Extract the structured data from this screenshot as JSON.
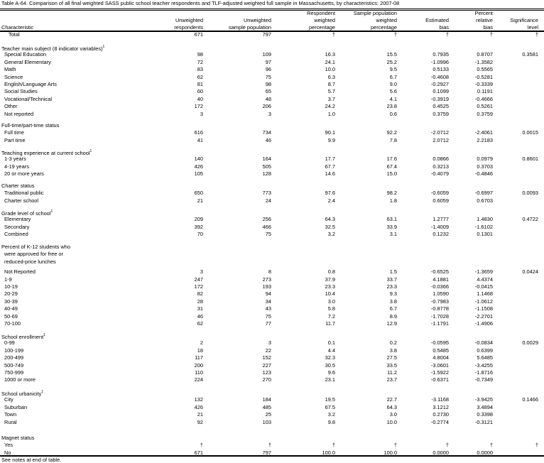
{
  "title": "Table A-64. Comparison of all final weighted SASS public school teacher respondents and TLF-adjusted weighted full sample in Massachusetts, by characteristics: 2007-08",
  "headers": {
    "characteristic": "Characteristic",
    "columns": [
      [
        "Unweighted",
        "respondents"
      ],
      [
        "Unweighted",
        "sample population"
      ],
      [
        "Respondent",
        "weighted",
        "percentage"
      ],
      [
        "Sample population",
        "weighted",
        "percentage"
      ],
      [
        "Estimated",
        "bias"
      ],
      [
        "Percent",
        "relative",
        "bias"
      ],
      [
        "Significance",
        "level"
      ]
    ]
  },
  "total": {
    "label": "Total",
    "values": [
      "671",
      "797",
      "†",
      "†",
      "†",
      "†",
      "†"
    ]
  },
  "sections": [
    {
      "title": [
        "Teacher main subject (8 indicator variables)"
      ],
      "footnote": "1",
      "rows": [
        {
          "label": "Special Education",
          "values": [
            "98",
            "109",
            "16.3",
            "15.5",
            "0.7935",
            "0.8707",
            "0.3581"
          ]
        },
        {
          "label": "General Elementary",
          "values": [
            "72",
            "97",
            "24.1",
            "25.2",
            "-1.0996",
            "-1.3582",
            ""
          ]
        },
        {
          "label": "Math",
          "values": [
            "83",
            "96",
            "10.0",
            "9.5",
            "0.5133",
            "0.5565",
            ""
          ]
        },
        {
          "label": "Science",
          "values": [
            "62",
            "75",
            "6.3",
            "6.7",
            "-0.4608",
            "-0.5281",
            ""
          ]
        },
        {
          "label": "English/Language Arts",
          "values": [
            "81",
            "98",
            "8.7",
            "9.0",
            "-0.2927",
            "-0.3339",
            ""
          ]
        },
        {
          "label": "Social Studies",
          "values": [
            "60",
            "65",
            "5.7",
            "5.6",
            "0.1099",
            "0.1191",
            ""
          ]
        },
        {
          "label": "Vocational/Technical",
          "values": [
            "40",
            "48",
            "3.7",
            "4.1",
            "-0.3919",
            "-0.4666",
            ""
          ]
        },
        {
          "label": "Other",
          "values": [
            "172",
            "206",
            "24.2",
            "23.8",
            "0.4525",
            "0.5261",
            ""
          ]
        },
        {
          "label": "Not reported",
          "values": [
            "3",
            "3",
            "1.0",
            "0.6",
            "0.3759",
            "0.3759",
            ""
          ]
        }
      ]
    },
    {
      "title": [
        "Full-time/part-time status"
      ],
      "footnote": "",
      "rows": [
        {
          "label": "Full time",
          "values": [
            "616",
            "734",
            "90.1",
            "92.2",
            "-2.0712",
            "-2.4061",
            "0.0015"
          ]
        },
        {
          "label": "Part time",
          "values": [
            "41",
            "46",
            "9.9",
            "7.8",
            "2.0712",
            "2.2183",
            ""
          ]
        }
      ]
    },
    {
      "title": [
        "Teaching experience at current school"
      ],
      "footnote": "1",
      "rows": [
        {
          "label": "1-3 years",
          "values": [
            "140",
            "164",
            "17.7",
            "17.6",
            "0.0866",
            "0.0979",
            "0.8601"
          ]
        },
        {
          "label": "4-19 years",
          "values": [
            "426",
            "505",
            "67.7",
            "67.4",
            "0.3213",
            "0.3703",
            ""
          ]
        },
        {
          "label": "20 or more years",
          "values": [
            "105",
            "128",
            "14.6",
            "15.0",
            "-0.4079",
            "-0.4846",
            ""
          ]
        }
      ]
    },
    {
      "title": [
        "Charter status"
      ],
      "footnote": "",
      "rows": [
        {
          "label": "Traditional public",
          "values": [
            "650",
            "773",
            "97.6",
            "98.2",
            "-0.6059",
            "-0.6997",
            "0.0093"
          ]
        },
        {
          "label": "Charter school",
          "values": [
            "21",
            "24",
            "2.4",
            "1.8",
            "0.6059",
            "0.6703",
            ""
          ]
        }
      ]
    },
    {
      "title": [
        "Grade level of school"
      ],
      "footnote": "1",
      "rows": [
        {
          "label": "Elementary",
          "values": [
            "209",
            "256",
            "64.3",
            "63.1",
            "1.2777",
            "1.4830",
            "0.4722"
          ]
        },
        {
          "label": "Secondary",
          "values": [
            "392",
            "466",
            "32.5",
            "33.9",
            "-1.4009",
            "-1.6102",
            ""
          ]
        },
        {
          "label": "Combined",
          "values": [
            "70",
            "75",
            "3.2",
            "3.1",
            "0.1232",
            "0.1301",
            ""
          ]
        }
      ]
    },
    {
      "title": [
        "Percent of K-12 students who",
        "were approved for free or",
        "reduced-price lunches"
      ],
      "footnote": "",
      "rows": [
        {
          "label": "Not Reported",
          "values": [
            "3",
            "8",
            "0.8",
            "1.5",
            "-0.6525",
            "-1.3659",
            "0.0424"
          ]
        },
        {
          "label": "1-9",
          "values": [
            "247",
            "273",
            "37.9",
            "33.7",
            "4.1881",
            "4.4374",
            ""
          ]
        },
        {
          "label": "10-19",
          "values": [
            "172",
            "193",
            "23.3",
            "23.3",
            "-0.0366",
            "-0.0415",
            ""
          ]
        },
        {
          "label": "20-29",
          "values": [
            "82",
            "94",
            "10.4",
            "9.3",
            "1.0590",
            "1.1468",
            ""
          ]
        },
        {
          "label": "30-39",
          "values": [
            "28",
            "34",
            "3.0",
            "3.8",
            "-0.7983",
            "-1.0612",
            ""
          ]
        },
        {
          "label": "40-49",
          "values": [
            "31",
            "43",
            "5.8",
            "6.7",
            "-0.8778",
            "-1.1508",
            ""
          ]
        },
        {
          "label": "50-69",
          "values": [
            "46",
            "75",
            "7.2",
            "8.9",
            "-1.7028",
            "-2.2701",
            ""
          ]
        },
        {
          "label": "70-100",
          "values": [
            "62",
            "77",
            "11.7",
            "12.9",
            "-1.1791",
            "-1.4906",
            ""
          ]
        }
      ]
    },
    {
      "title": [
        "School enrollment"
      ],
      "footnote": "1",
      "rows": [
        {
          "label": "0-99",
          "values": [
            "2",
            "3",
            "0.1",
            "0.2",
            "-0.0595",
            "-0.0834",
            "0.0029"
          ]
        },
        {
          "label": "100-199",
          "values": [
            "18",
            "22",
            "4.4",
            "3.8",
            "0.5485",
            "0.6399",
            ""
          ]
        },
        {
          "label": "200-499",
          "values": [
            "117",
            "152",
            "32.3",
            "27.5",
            "4.8004",
            "5.6485",
            ""
          ]
        },
        {
          "label": "500-749",
          "values": [
            "200",
            "227",
            "30.5",
            "33.5",
            "-3.0601",
            "-3.4255",
            ""
          ]
        },
        {
          "label": "750-999",
          "values": [
            "110",
            "123",
            "9.6",
            "11.2",
            "-1.5922",
            "-1.8716",
            ""
          ]
        },
        {
          "label": "1000 or more",
          "values": [
            "224",
            "270",
            "23.1",
            "23.7",
            "-0.6371",
            "-0.7349",
            ""
          ]
        }
      ]
    },
    {
      "title": [
        "School urbanicity"
      ],
      "footnote": "1",
      "rows": [
        {
          "label": "City",
          "values": [
            "132",
            "184",
            "19.5",
            "22.7",
            "-3.1168",
            "-3.9425",
            "0.1466"
          ]
        },
        {
          "label": "Suburban",
          "values": [
            "426",
            "485",
            "67.5",
            "64.3",
            "3.1212",
            "3.4894",
            ""
          ]
        },
        {
          "label": "Town",
          "values": [
            "21",
            "25",
            "3.2",
            "3.0",
            "0.2730",
            "0.3398",
            ""
          ]
        },
        {
          "label": "Rural",
          "values": [
            "92",
            "103",
            "9.8",
            "10.0",
            "-0.2774",
            "-0.3121",
            ""
          ]
        }
      ]
    },
    {
      "title": [
        "Magnet status"
      ],
      "footnote": "",
      "rows": [
        {
          "label": "Yes",
          "values": [
            "†",
            "†",
            "†",
            "†",
            "†",
            "†",
            "†"
          ]
        },
        {
          "label": "No",
          "values": [
            "671",
            "797",
            "100.0",
            "100.0",
            "0.0000",
            "0.0000",
            ""
          ]
        }
      ]
    }
  ],
  "note": "See notes at end of table."
}
